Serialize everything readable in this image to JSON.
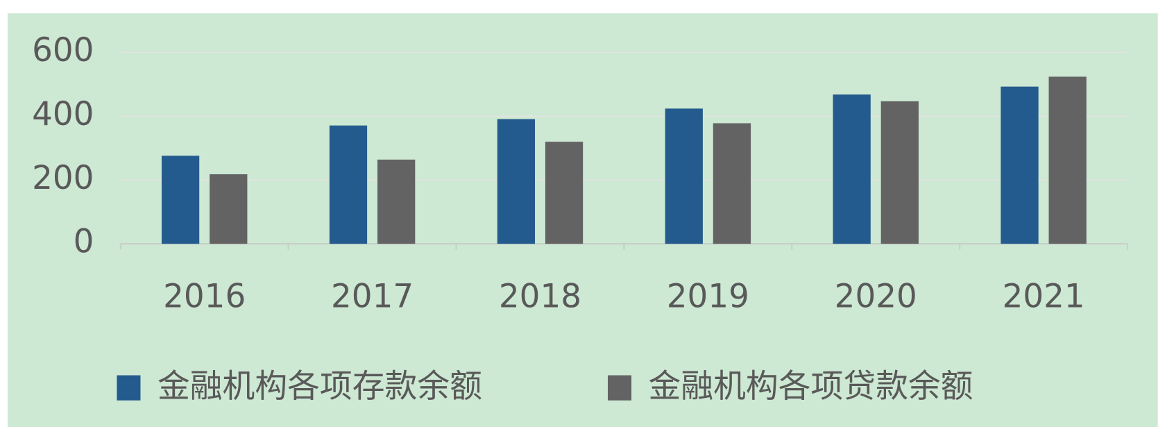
{
  "chart_data": {
    "type": "bar",
    "categories": [
      "2016",
      "2017",
      "2018",
      "2019",
      "2020",
      "2021"
    ],
    "series": [
      {
        "name": "金融机构各项存款余额",
        "color": "#245b8e",
        "values": [
          276,
          371,
          391,
          424,
          468,
          493
        ]
      },
      {
        "name": "金融机构各项贷款余额",
        "color": "#636363",
        "values": [
          218,
          264,
          320,
          378,
          447,
          524
        ]
      }
    ],
    "ylim": [
      0,
      600
    ],
    "yticks": [
      0,
      200,
      400,
      600
    ],
    "grid": true,
    "legend": "bottom"
  }
}
